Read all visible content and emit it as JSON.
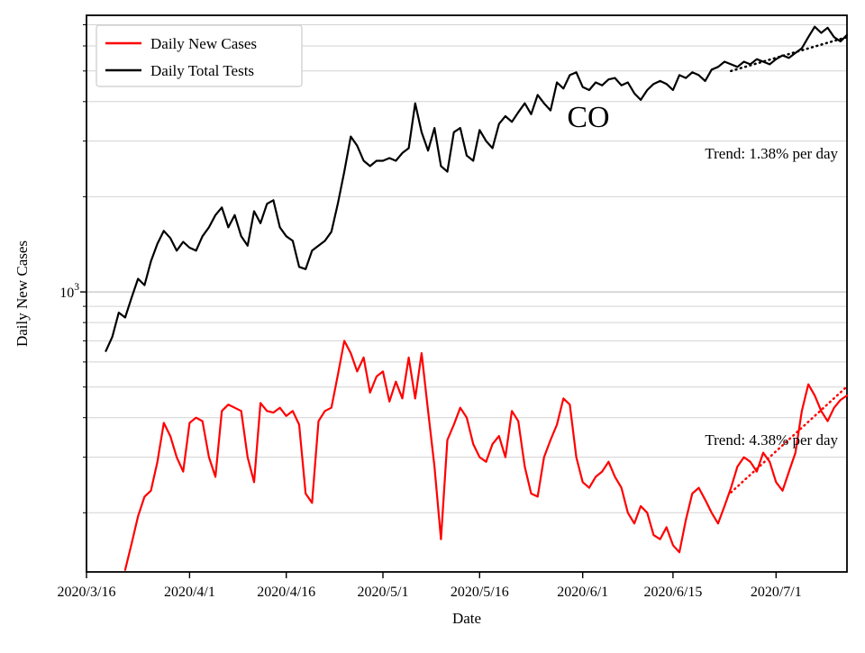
{
  "chart_data": {
    "type": "line",
    "yscale": "log",
    "grid": "horizontal-only",
    "legend_position": "upper-left",
    "xlabel": "Date",
    "ylabel": "Daily New Cases",
    "ylim": [
      130,
      7500
    ],
    "x_start_date": "2020/3/16",
    "x_total_days": 118,
    "x_ticks": [
      {
        "day": 0,
        "label": "2020/3/16"
      },
      {
        "day": 16,
        "label": "2020/4/1"
      },
      {
        "day": 31,
        "label": "2020/4/16"
      },
      {
        "day": 46,
        "label": "2020/5/1"
      },
      {
        "day": 61,
        "label": "2020/5/16"
      },
      {
        "day": 77,
        "label": "2020/6/1"
      },
      {
        "day": 91,
        "label": "2020/6/15"
      },
      {
        "day": 107,
        "label": "2020/7/1"
      }
    ],
    "y_tick": {
      "value": 1000,
      "base": "10",
      "exponent": "3"
    },
    "gridlines_y": [
      200,
      300,
      400,
      500,
      600,
      700,
      800,
      900,
      1000,
      2000,
      3000,
      4000,
      5000,
      6000,
      7000
    ],
    "series": [
      {
        "name": "Daily New Cases",
        "color": "#ff0000",
        "start_day": 6,
        "values": [
          132,
          160,
          195,
          225,
          235,
          290,
          385,
          350,
          300,
          270,
          385,
          400,
          390,
          300,
          260,
          420,
          440,
          430,
          420,
          300,
          250,
          445,
          420,
          415,
          430,
          405,
          420,
          380,
          230,
          215,
          390,
          420,
          430,
          545,
          700,
          640,
          560,
          620,
          480,
          540,
          560,
          450,
          520,
          460,
          620,
          460,
          640,
          420,
          280,
          165,
          340,
          380,
          430,
          400,
          330,
          300,
          290,
          330,
          350,
          300,
          420,
          390,
          280,
          230,
          225,
          300,
          340,
          380,
          460,
          440,
          300,
          250,
          240,
          260,
          270,
          290,
          260,
          240,
          200,
          185,
          210,
          200,
          170,
          165,
          180,
          158,
          150,
          190,
          230,
          240,
          220,
          200,
          185,
          210,
          240,
          280,
          300,
          290,
          270,
          310,
          290,
          250,
          235,
          270,
          310,
          420,
          510,
          470,
          420,
          390,
          430,
          455,
          470
        ]
      },
      {
        "name": "Daily Total Tests",
        "color": "#000000",
        "start_day": 3,
        "values": [
          650,
          720,
          860,
          830,
          960,
          1100,
          1050,
          1250,
          1420,
          1560,
          1480,
          1350,
          1440,
          1380,
          1350,
          1500,
          1600,
          1750,
          1850,
          1600,
          1750,
          1500,
          1400,
          1800,
          1650,
          1900,
          1950,
          1600,
          1500,
          1450,
          1200,
          1180,
          1350,
          1400,
          1450,
          1550,
          1900,
          2400,
          3100,
          2900,
          2600,
          2500,
          2600,
          2600,
          2650,
          2600,
          2750,
          2850,
          3950,
          3200,
          2800,
          3300,
          2500,
          2400,
          3200,
          3300,
          2700,
          2600,
          3250,
          3000,
          2850,
          3400,
          3600,
          3450,
          3700,
          3950,
          3650,
          4200,
          3950,
          3750,
          4600,
          4400,
          4850,
          4950,
          4450,
          4350,
          4600,
          4500,
          4700,
          4750,
          4500,
          4600,
          4250,
          4050,
          4350,
          4550,
          4650,
          4550,
          4350,
          4850,
          4750,
          4950,
          4850,
          4650,
          5050,
          5150,
          5350,
          5250,
          5150,
          5350,
          5250,
          5450,
          5350,
          5250,
          5450,
          5600,
          5500,
          5700,
          5900,
          6400,
          6900,
          6600,
          6850,
          6400,
          6200,
          6500
        ]
      }
    ],
    "trend_lines": [
      {
        "series": "Daily New Cases",
        "color": "#ff0000",
        "style": "dotted",
        "start_day": 100,
        "end_day": 118,
        "start_value": 232,
        "growth_per_day_pct": 4.38,
        "label": "Trend: 4.38% per day"
      },
      {
        "series": "Daily Total Tests",
        "color": "#000000",
        "style": "dotted",
        "start_day": 100,
        "end_day": 118,
        "start_value": 5000,
        "growth_per_day_pct": 1.38,
        "label": "Trend: 1.38% per day"
      }
    ],
    "annotations": {
      "state_label": {
        "text": "CO"
      },
      "trend_tests": {
        "text": "Trend: 1.38% per day"
      },
      "trend_cases": {
        "text": "Trend: 4.38% per day"
      }
    }
  }
}
